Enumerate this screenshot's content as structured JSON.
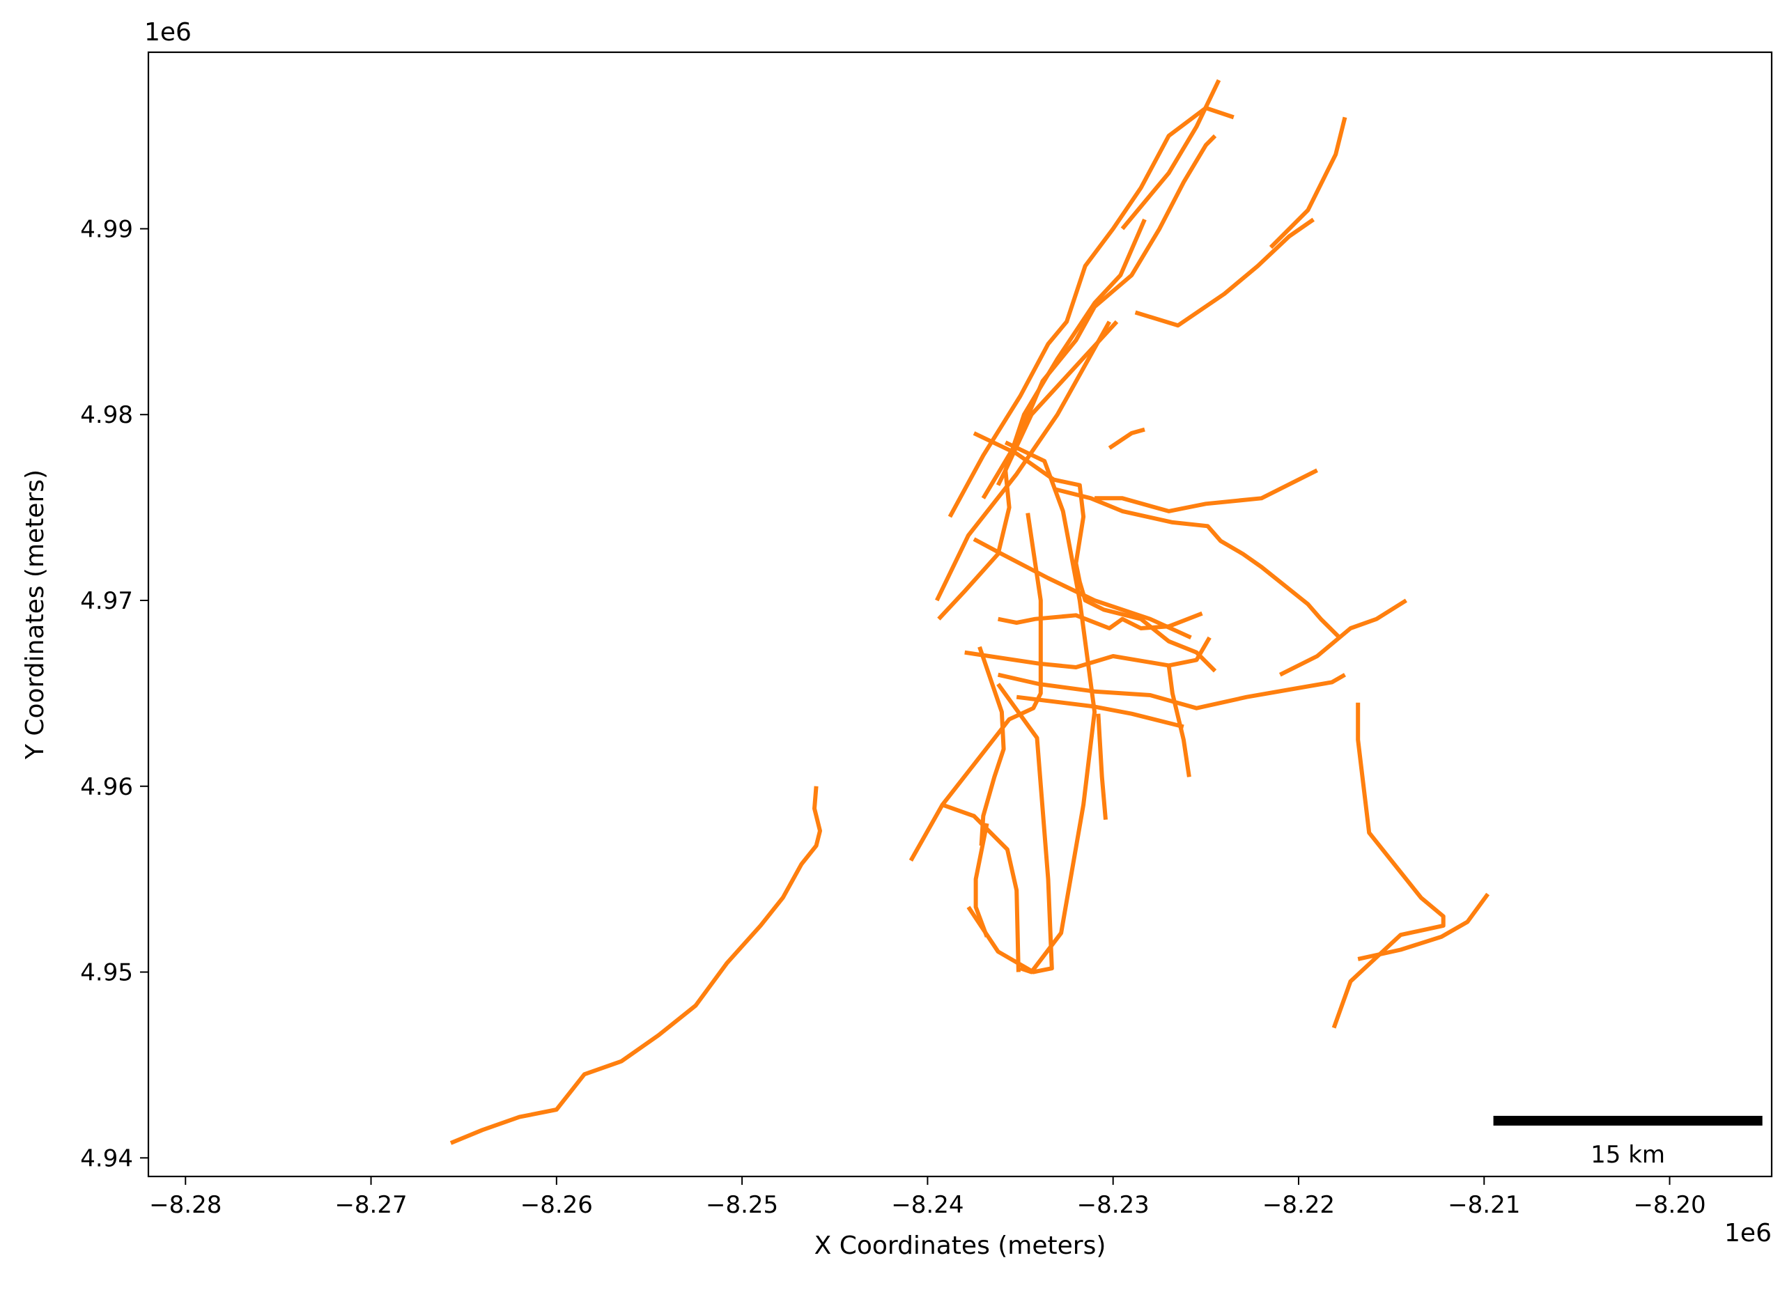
{
  "chart_data": {
    "type": "map",
    "xlabel": "X Coordinates (meters)",
    "ylabel": "Y Coordinates (meters)",
    "x_offset_label": "1e6",
    "y_offset_label": "1e6",
    "xlim": [
      -8.282,
      -8.1945
    ],
    "ylim": [
      4.939,
      4.9995
    ],
    "x_ticks": [
      -8.28,
      -8.27,
      -8.26,
      -8.25,
      -8.24,
      -8.23,
      -8.22,
      -8.21,
      -8.2
    ],
    "x_tick_labels": [
      "−8.28",
      "−8.27",
      "−8.26",
      "−8.25",
      "−8.24",
      "−8.23",
      "−8.22",
      "−8.21",
      "−8.20"
    ],
    "y_ticks": [
      4.94,
      4.95,
      4.96,
      4.97,
      4.98,
      4.99
    ],
    "y_tick_labels": [
      "4.94",
      "4.95",
      "4.96",
      "4.97",
      "4.98",
      "4.99"
    ],
    "grid": false,
    "line_color": "#ff7f0e",
    "scale_bar": {
      "label": "15 km",
      "x_start": -8.2095,
      "x_end": -8.195,
      "y": 4.942,
      "color": "#000000"
    },
    "lines": [
      {
        "x": [
          -8.2657,
          -8.264,
          -8.262,
          -8.26,
          -8.2585,
          -8.2565,
          -8.2545,
          -8.2525,
          -8.2508,
          -8.249,
          -8.2478,
          -8.2468,
          -8.246,
          -8.2458,
          -8.2461,
          -8.246
        ],
        "y": [
          4.9408,
          4.9415,
          4.9422,
          4.9426,
          4.9445,
          4.9452,
          4.9466,
          4.9482,
          4.9505,
          4.9525,
          4.954,
          4.9558,
          4.9568,
          4.9576,
          4.9588,
          4.96
        ]
      },
      {
        "x": [
          -8.2409,
          -8.2392,
          -8.2356,
          -8.2343,
          -8.2339,
          -8.2339,
          -8.2346
        ],
        "y": [
          4.956,
          4.959,
          4.9636,
          4.9642,
          4.965,
          4.97,
          4.9747
        ]
      },
      {
        "x": [
          -8.2392,
          -8.2375,
          -8.2357,
          -8.2352,
          -8.2351
        ],
        "y": [
          4.959,
          4.9584,
          4.9566,
          4.9544,
          4.95
        ]
      },
      {
        "x": [
          -8.2378,
          -8.2362,
          -8.2343,
          -8.2333,
          -8.2335,
          -8.2341,
          -8.2362
        ],
        "y": [
          4.9535,
          4.9511,
          4.95,
          4.9502,
          4.955,
          4.9626,
          4.9655
        ]
      },
      {
        "x": [
          -8.235,
          -8.2344,
          -8.2328,
          -8.2316,
          -8.231,
          -8.2318,
          -8.2327,
          -8.2337,
          -8.2358
        ],
        "y": [
          4.9502,
          4.95,
          4.9521,
          4.959,
          4.964,
          4.97,
          4.9748,
          4.9775,
          4.9785
        ]
      },
      {
        "x": [
          -8.2371,
          -8.237,
          -8.2364,
          -8.2359,
          -8.236,
          -8.2372
        ],
        "y": [
          4.9568,
          4.9584,
          4.9605,
          4.962,
          4.964,
          4.9675
        ]
      },
      {
        "x": [
          -8.2368,
          -8.2374,
          -8.2374,
          -8.2368
        ],
        "y": [
          4.9519,
          4.9535,
          4.955,
          4.958
        ]
      },
      {
        "x": [
          -8.2181,
          -8.2172,
          -8.2145,
          -8.2122,
          -8.2122,
          -8.2134,
          -8.2162,
          -8.2168,
          -8.2168
        ],
        "y": [
          4.947,
          4.9495,
          4.952,
          4.9525,
          4.953,
          4.954,
          4.9575,
          4.9625,
          4.9645
        ]
      },
      {
        "x": [
          -8.2168,
          -8.2145,
          -8.2123,
          -8.2109,
          -8.2098
        ],
        "y": [
          4.9507,
          4.9512,
          4.9519,
          4.9527,
          4.9542
        ]
      },
      {
        "x": [
          -8.2362,
          -8.234,
          -8.231,
          -8.228,
          -8.2255,
          -8.2228,
          -8.2205,
          -8.2182,
          -8.2175
        ],
        "y": [
          4.966,
          4.9655,
          4.9651,
          4.9649,
          4.9642,
          4.9648,
          4.9652,
          4.9656,
          4.966
        ]
      },
      {
        "x": [
          -8.2352,
          -8.2311,
          -8.229,
          -8.2262
        ],
        "y": [
          4.9648,
          4.9643,
          4.9639,
          4.9632
        ]
      },
      {
        "x": [
          -8.2308,
          -8.2306,
          -8.2304
        ],
        "y": [
          4.9639,
          4.9605,
          4.9582
        ]
      },
      {
        "x": [
          -8.2259,
          -8.2262,
          -8.2268,
          -8.227
        ],
        "y": [
          4.9605,
          4.9625,
          4.965,
          4.9665
        ]
      },
      {
        "x": [
          -8.238,
          -8.234,
          -8.232,
          -8.23,
          -8.227,
          -8.2255,
          -8.2248
        ],
        "y": [
          4.9672,
          4.9666,
          4.9664,
          4.967,
          4.9665,
          4.9668,
          4.968
        ]
      },
      {
        "x": [
          -8.2245,
          -8.2255,
          -8.227,
          -8.2285,
          -8.2305,
          -8.2315,
          -8.2318,
          -8.232,
          -8.2316,
          -8.2318,
          -8.2332,
          -8.2352,
          -8.2375
        ],
        "y": [
          4.9662,
          4.9672,
          4.9678,
          4.969,
          4.9695,
          4.97,
          4.971,
          4.972,
          4.9745,
          4.9762,
          4.9765,
          4.9779,
          4.979
        ]
      },
      {
        "x": [
          -8.2258,
          -8.228,
          -8.231,
          -8.2335,
          -8.236,
          -8.2375
        ],
        "y": [
          4.968,
          4.969,
          4.97,
          4.9712,
          4.9725,
          4.9733
        ]
      },
      {
        "x": [
          -8.2332,
          -8.2312,
          -8.2295,
          -8.2268,
          -8.2249,
          -8.2242,
          -8.223,
          -8.222,
          -8.2195,
          -8.2188,
          -8.2178
        ],
        "y": [
          4.976,
          4.9755,
          4.9748,
          4.9742,
          4.974,
          4.9732,
          4.9725,
          4.9718,
          4.9698,
          4.969,
          4.968
        ]
      },
      {
        "x": [
          -8.231,
          -8.2295,
          -8.227,
          -8.225,
          -8.222,
          -8.219
        ],
        "y": [
          4.9755,
          4.9755,
          4.9748,
          4.9752,
          4.9755,
          4.977
        ]
      },
      {
        "x": [
          -8.2302,
          -8.229,
          -8.2283
        ],
        "y": [
          4.9782,
          4.979,
          4.9792
        ]
      },
      {
        "x": [
          -8.2252,
          -8.227,
          -8.2285,
          -8.2295,
          -8.2302,
          -8.232,
          -8.2342,
          -8.2352,
          -8.2362
        ],
        "y": [
          4.9693,
          4.9686,
          4.9685,
          4.969,
          4.9685,
          4.9692,
          4.969,
          4.9688,
          4.969
        ]
      },
      {
        "x": [
          -8.221,
          -8.219,
          -8.2172,
          -8.2158,
          -8.2142
        ],
        "y": [
          4.966,
          4.967,
          4.9685,
          4.969,
          4.97
        ]
      },
      {
        "x": [
          -8.2394,
          -8.238,
          -8.2362,
          -8.2356,
          -8.2358,
          -8.2348,
          -8.233,
          -8.231,
          -8.2296,
          -8.2283
        ],
        "y": [
          4.969,
          4.9705,
          4.9725,
          4.975,
          4.977,
          4.98,
          4.983,
          4.986,
          4.9875,
          4.9905
        ]
      },
      {
        "x": [
          -8.2388,
          -8.237,
          -8.235,
          -8.2335,
          -8.2325,
          -8.2315,
          -8.23,
          -8.2285,
          -8.227,
          -8.225,
          -8.2235
        ],
        "y": [
          4.9745,
          4.9778,
          4.981,
          4.9838,
          4.985,
          4.988,
          4.99,
          4.9922,
          4.995,
          4.9965,
          4.996
        ]
      },
      {
        "x": [
          -8.237,
          -8.2352,
          -8.2338,
          -8.232,
          -8.231,
          -8.229,
          -8.2275,
          -8.2262,
          -8.225,
          -8.2245
        ],
        "y": [
          4.9755,
          4.9785,
          4.9818,
          4.984,
          4.9858,
          4.9875,
          4.99,
          4.9925,
          4.9945,
          4.995
        ]
      },
      {
        "x": [
          -8.2288,
          -8.2265,
          -8.224,
          -8.2222,
          -8.2205,
          -8.2192
        ],
        "y": [
          4.9855,
          4.9848,
          4.9865,
          4.988,
          4.9896,
          4.9905
        ]
      },
      {
        "x": [
          -8.2295,
          -8.227,
          -8.2255,
          -8.2243
        ],
        "y": [
          4.99,
          4.993,
          4.9955,
          4.998
        ]
      },
      {
        "x": [
          -8.2215,
          -8.2195,
          -8.218,
          -8.2175
        ],
        "y": [
          4.989,
          4.991,
          4.994,
          4.996
        ]
      },
      {
        "x": [
          -8.2362,
          -8.2358,
          -8.2344,
          -8.231,
          -8.2298
        ],
        "y": [
          4.9762,
          4.977,
          4.98,
          4.9837,
          4.985
        ]
      },
      {
        "x": [
          -8.2395,
          -8.2378,
          -8.2352,
          -8.233,
          -8.2302
        ],
        "y": [
          4.97,
          4.9735,
          4.9768,
          4.98,
          4.985
        ]
      }
    ]
  }
}
